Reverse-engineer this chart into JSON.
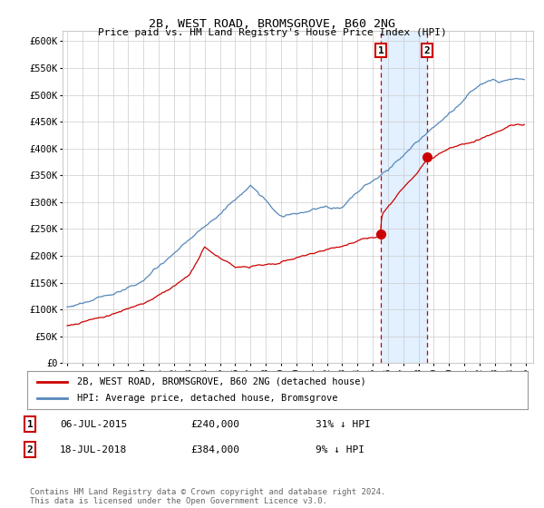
{
  "title": "2B, WEST ROAD, BROMSGROVE, B60 2NG",
  "subtitle": "Price paid vs. HM Land Registry's House Price Index (HPI)",
  "ylim": [
    0,
    620000
  ],
  "yticks": [
    0,
    50000,
    100000,
    150000,
    200000,
    250000,
    300000,
    350000,
    400000,
    450000,
    500000,
    550000,
    600000
  ],
  "ytick_labels": [
    "£0",
    "£50K",
    "£100K",
    "£150K",
    "£200K",
    "£250K",
    "£300K",
    "£350K",
    "£400K",
    "£450K",
    "£500K",
    "£550K",
    "£600K"
  ],
  "legend_entry1": "2B, WEST ROAD, BROMSGROVE, B60 2NG (detached house)",
  "legend_entry2": "HPI: Average price, detached house, Bromsgrove",
  "sale1_date": "06-JUL-2015",
  "sale1_price": "£240,000",
  "sale1_hpi": "31% ↓ HPI",
  "sale1_price_val": 240000,
  "sale1_year": 2015.54,
  "sale2_date": "18-JUL-2018",
  "sale2_price": "£384,000",
  "sale2_hpi": "9% ↓ HPI",
  "sale2_price_val": 384000,
  "sale2_year": 2018.54,
  "footer": "Contains HM Land Registry data © Crown copyright and database right 2024.\nThis data is licensed under the Open Government Licence v3.0.",
  "line1_color": "#cc0000",
  "line2_color": "#5588bb",
  "shade_color": "#ddeeff",
  "vline_color": "#cc0000",
  "box_edge_color": "#cc0000",
  "bg_color": "#ffffff",
  "grid_color": "#cccccc",
  "xlim_left": 1994.7,
  "xlim_right": 2025.5
}
